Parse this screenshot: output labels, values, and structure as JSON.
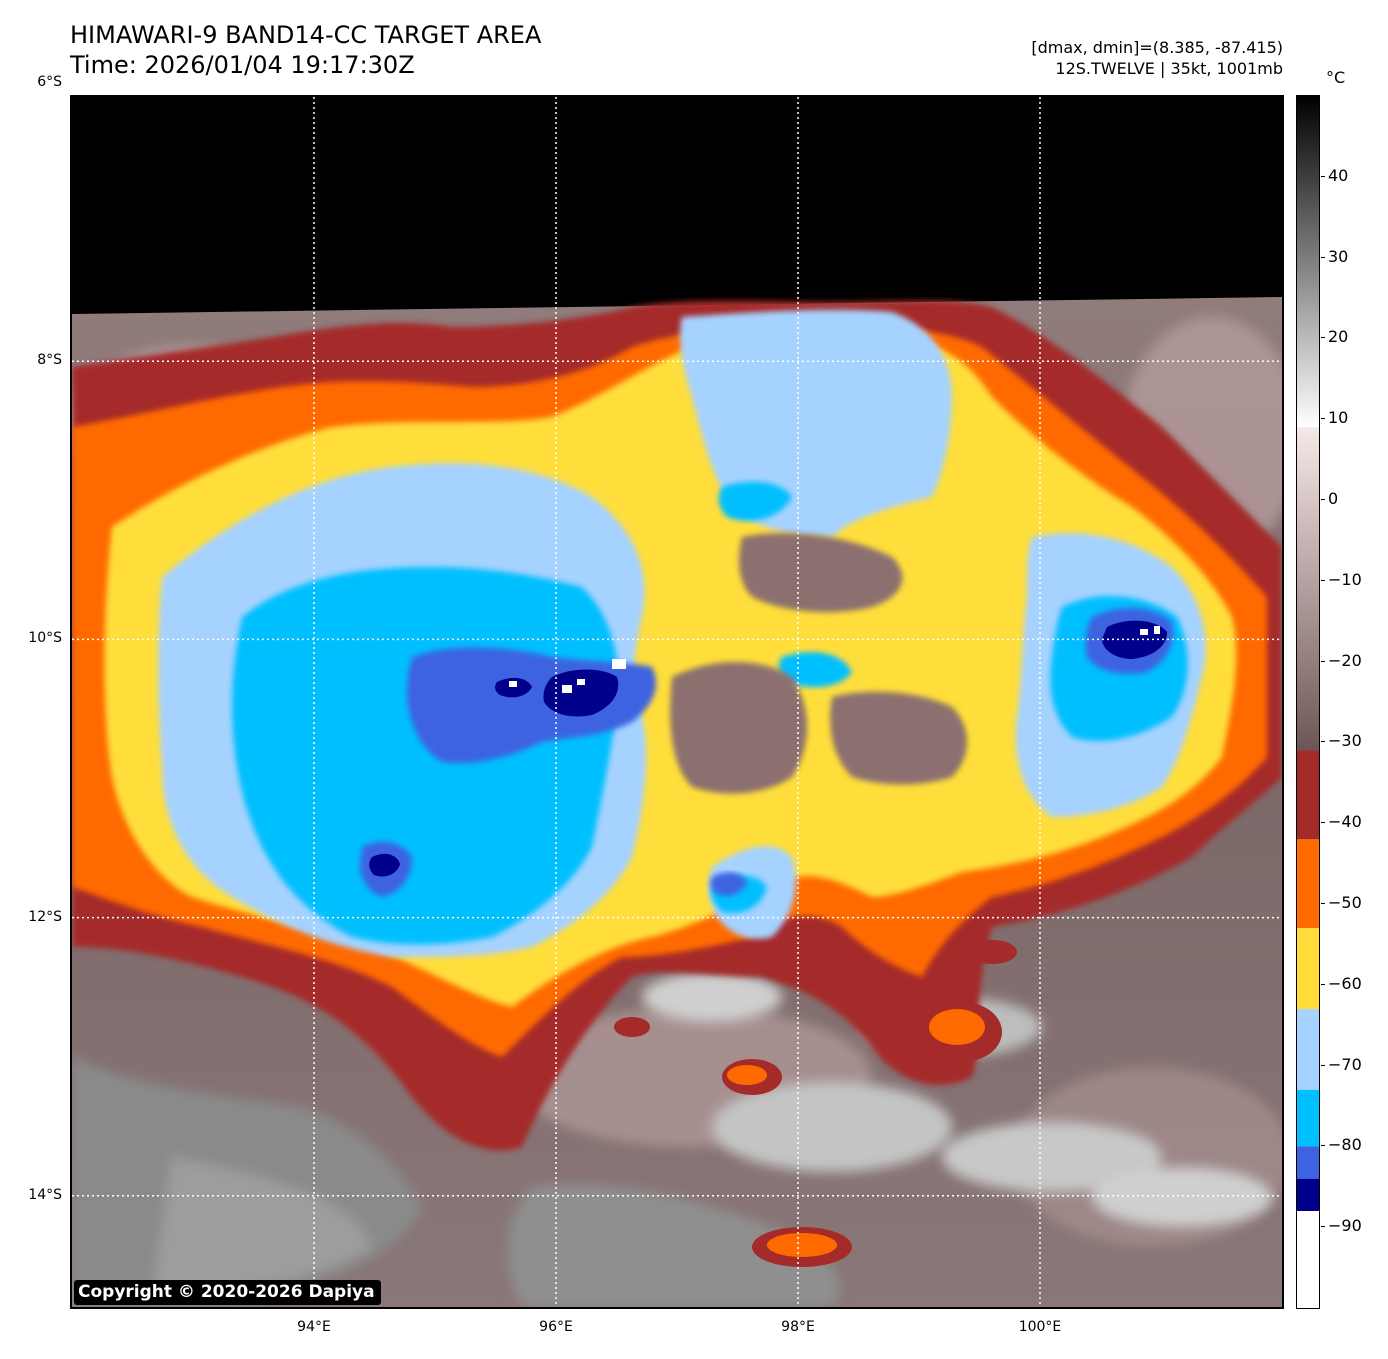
{
  "header": {
    "title_line1": "HIMAWARI-9 BAND14-CC TARGET AREA",
    "title_line2": "Time: 2026/01/04 19:17:30Z",
    "info_line1": "[dmax, dmin]=(8.385, -87.415)",
    "info_line2": "12S.TWELVE | 35kt, 1001mb"
  },
  "map": {
    "copyright": "Copyright © 2020-2026 Dapiya",
    "lat_labels": [
      {
        "label": "6°S",
        "value": -6
      },
      {
        "label": "8°S",
        "value": -8
      },
      {
        "label": "10°S",
        "value": -10
      },
      {
        "label": "12°S",
        "value": -12
      },
      {
        "label": "14°S",
        "value": -14
      }
    ],
    "lon_labels": [
      {
        "label": "94°E",
        "value": 94
      },
      {
        "label": "96°E",
        "value": 96
      },
      {
        "label": "98°E",
        "value": 98
      },
      {
        "label": "100°E",
        "value": 100
      }
    ],
    "lat_range": [
      -6.1,
      -14.8
    ],
    "lon_range": [
      92.0,
      102.0
    ],
    "grid": "dotted white",
    "no_data_color": "#000000"
  },
  "colorbar": {
    "unit": "°C",
    "range": [
      -100,
      50
    ],
    "ticks": [
      {
        "label": "40",
        "value": 40
      },
      {
        "label": "30",
        "value": 30
      },
      {
        "label": "20",
        "value": 20
      },
      {
        "label": "10",
        "value": 10
      },
      {
        "label": "0",
        "value": 0
      },
      {
        "label": "−10",
        "value": -10
      },
      {
        "label": "−20",
        "value": -20
      },
      {
        "label": "−30",
        "value": -30
      },
      {
        "label": "−40",
        "value": -40
      },
      {
        "label": "−50",
        "value": -50
      },
      {
        "label": "−60",
        "value": -60
      },
      {
        "label": "−70",
        "value": -70
      },
      {
        "label": "−80",
        "value": -80
      },
      {
        "label": "−90",
        "value": -90
      }
    ],
    "segments": [
      {
        "from": 9,
        "to": 50,
        "color": "#000000",
        "gradient_to": "#ffffff"
      },
      {
        "from": -31,
        "to": 9,
        "color": "#f7e8e8",
        "gradient_to": "#6e5555"
      },
      {
        "from": -42,
        "to": -31,
        "color": "#a52a2a"
      },
      {
        "from": -53,
        "to": -42,
        "color": "#ff6a00"
      },
      {
        "from": -63,
        "to": -53,
        "color": "#ffde3a"
      },
      {
        "from": -73,
        "to": -63,
        "color": "#a6d2ff"
      },
      {
        "from": -80,
        "to": -73,
        "color": "#00bfff"
      },
      {
        "from": -84,
        "to": -80,
        "color": "#3d63e0"
      },
      {
        "from": -88,
        "to": -84,
        "color": "#00008b"
      },
      {
        "from": -100,
        "to": -88,
        "color": "#ffffff"
      }
    ]
  }
}
